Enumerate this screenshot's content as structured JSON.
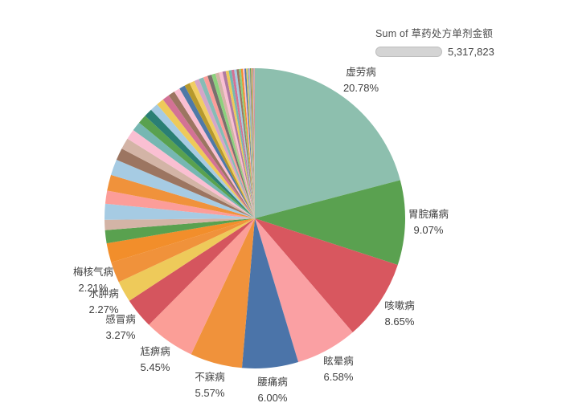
{
  "legend": {
    "title": "Sum of 草药处方单剂金额",
    "value": "5,317,823",
    "swatch_color": "#d4d4d4"
  },
  "chart_data": {
    "type": "pie",
    "measure": "Sum of 草药处方单剂金额",
    "total_value": "5,317,823",
    "start_angle_deg": 0,
    "direction": "clockwise",
    "legend_position": "top-right",
    "labels_shown_for_top_slices_only": true,
    "slices": [
      {
        "name": "虚劳病",
        "value": 20.78,
        "pct_text": "20.78%",
        "color": "#8dbfae"
      },
      {
        "name": "胃脘痛病",
        "value": 9.07,
        "pct_text": "9.07%",
        "color": "#5aa150"
      },
      {
        "name": "咳嗽病",
        "value": 8.65,
        "pct_text": "8.65%",
        "color": "#d8575f"
      },
      {
        "name": "眩晕病",
        "value": 6.58,
        "pct_text": "6.58%",
        "color": "#faa0a3"
      },
      {
        "name": "腰痛病",
        "value": 6.0,
        "pct_text": "6.00%",
        "color": "#4b74a9"
      },
      {
        "name": "不寐病",
        "value": 5.57,
        "pct_text": "5.57%",
        "color": "#f0923b"
      },
      {
        "name": "尪痹病",
        "value": 5.45,
        "pct_text": "5.45%",
        "color": "#fb9e97"
      },
      {
        "name": "感冒病",
        "value": 3.27,
        "pct_text": "3.27%",
        "color": "#d5555e"
      },
      {
        "name": "水肿病",
        "value": 2.27,
        "pct_text": "2.27%",
        "color": "#eeca5a"
      },
      {
        "name": "梅核气病",
        "value": 2.21,
        "pct_text": "2.21%",
        "color": "#f0923b"
      },
      {
        "value": 2.08,
        "color": "#f28e2b"
      },
      {
        "value": 1.4,
        "color": "#59a14f"
      },
      {
        "value": 1.1,
        "color": "#d3b4a6"
      },
      {
        "value": 1.7,
        "color": "#a6cbe3"
      },
      {
        "value": 1.4,
        "color": "#fc9d99"
      },
      {
        "value": 1.7,
        "color": "#f0923b"
      },
      {
        "value": 1.7,
        "color": "#a6cbe3"
      },
      {
        "value": 1.3,
        "color": "#9c7561"
      },
      {
        "value": 1.2,
        "color": "#d3b4a6"
      },
      {
        "value": 1.1,
        "color": "#fabfd2"
      },
      {
        "value": 1.0,
        "color": "#76b7b2"
      },
      {
        "value": 0.95,
        "color": "#59a14f"
      },
      {
        "value": 0.9,
        "color": "#2a7f74"
      },
      {
        "value": 0.85,
        "color": "#a6cbe3"
      },
      {
        "value": 0.8,
        "color": "#eeca5a"
      },
      {
        "value": 0.75,
        "color": "#d37295"
      },
      {
        "value": 0.7,
        "color": "#9c7561"
      },
      {
        "value": 0.65,
        "color": "#fabfd2"
      },
      {
        "value": 0.62,
        "color": "#4e79a7"
      },
      {
        "value": 0.58,
        "color": "#b6992d"
      },
      {
        "value": 0.55,
        "color": "#f1ce63"
      },
      {
        "value": 0.52,
        "color": "#d4a6c8"
      },
      {
        "value": 0.5,
        "color": "#86bcb6"
      },
      {
        "value": 0.47,
        "color": "#fc9d99"
      },
      {
        "value": 0.44,
        "color": "#79706e"
      },
      {
        "value": 0.42,
        "color": "#8cd17d"
      },
      {
        "value": 0.4,
        "color": "#d3b4a6"
      },
      {
        "value": 0.37,
        "color": "#fabfd2"
      },
      {
        "value": 0.35,
        "color": "#b07aa1"
      },
      {
        "value": 0.32,
        "color": "#eeca5a"
      },
      {
        "value": 0.3,
        "color": "#76b7b2"
      },
      {
        "value": 0.28,
        "color": "#d37295"
      },
      {
        "value": 0.26,
        "color": "#a6cbe3"
      },
      {
        "value": 0.24,
        "color": "#9c7561"
      },
      {
        "value": 0.22,
        "color": "#8cd17d"
      },
      {
        "value": 0.2,
        "color": "#f28e2b"
      },
      {
        "value": 0.18,
        "color": "#fabfd2"
      },
      {
        "value": 0.17,
        "color": "#4e79a7"
      },
      {
        "value": 0.15,
        "color": "#eeca5a"
      },
      {
        "value": 0.14,
        "color": "#86bcb6"
      },
      {
        "value": 0.12,
        "color": "#d4a6c8"
      },
      {
        "value": 0.11,
        "color": "#59a14f"
      },
      {
        "value": 0.1,
        "color": "#fc9d99"
      },
      {
        "value": 0.09,
        "color": "#b6992d"
      },
      {
        "value": 0.08,
        "color": "#a6cbe3"
      },
      {
        "value": 0.07,
        "color": "#d37295"
      },
      {
        "value": 0.06,
        "color": "#d3b4a6"
      }
    ]
  }
}
